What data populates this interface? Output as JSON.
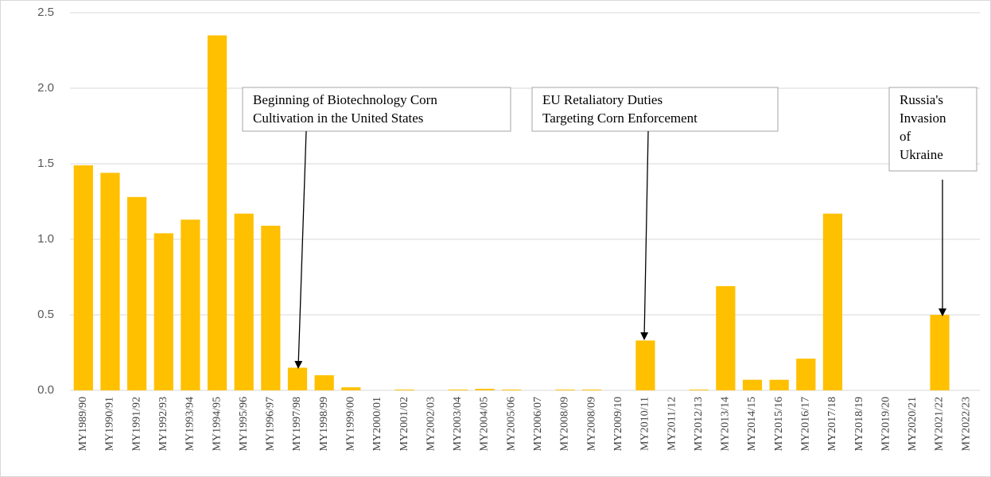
{
  "chart_data": {
    "type": "bar",
    "categories": [
      "MY1989/90",
      "MY1990/91",
      "MY1991/92",
      "MY1992/93",
      "MY1993/94",
      "MY1994/95",
      "MY1995/96",
      "MY1996/97",
      "MY1997/98",
      "MY1998/99",
      "MY1999/00",
      "MY2000/01",
      "MY2001/02",
      "MY2002/03",
      "MY2003/04",
      "MY2004/05",
      "MY2005/06",
      "MY2006/07",
      "MY2008/09",
      "MY2008/09",
      "MY2009/10",
      "MY2010/11",
      "MY2011/12",
      "MY2012/13",
      "MY2013/14",
      "MY2014/15",
      "MY2015/16",
      "MY2016/17",
      "MY2017/18",
      "MY2018/19",
      "MY2019/20",
      "MY2020/21",
      "MY2021/22",
      "MY2022/23"
    ],
    "values": [
      1.49,
      1.44,
      1.28,
      1.04,
      1.13,
      2.35,
      1.17,
      1.09,
      0.15,
      0.1,
      0.02,
      0,
      0.005,
      0,
      0.005,
      0.01,
      0.005,
      0,
      0.005,
      0.005,
      0,
      0.33,
      0,
      0.005,
      0.69,
      0.07,
      0.07,
      0.21,
      1.17,
      0,
      0,
      0,
      0.5,
      0
    ],
    "color": "#ffc000",
    "ylim": [
      0,
      2.5
    ],
    "yticks": [
      {
        "value": 0,
        "label": "0.0"
      },
      0.5,
      {
        "value": 1,
        "label": "1.0"
      },
      1.5,
      {
        "value": 2,
        "label": "2.0"
      },
      2.5
    ],
    "grid": true,
    "annotations": [
      {
        "lines": [
          "Beginning of Biotechnology Corn",
          "Cultivation in the United States"
        ]
      },
      {
        "lines": [
          "EU Retaliatory Duties",
          "Targeting Corn Enforcement"
        ]
      },
      {
        "lines": [
          "Russia's",
          "Invasion",
          "of",
          "Ukraine"
        ]
      }
    ]
  }
}
